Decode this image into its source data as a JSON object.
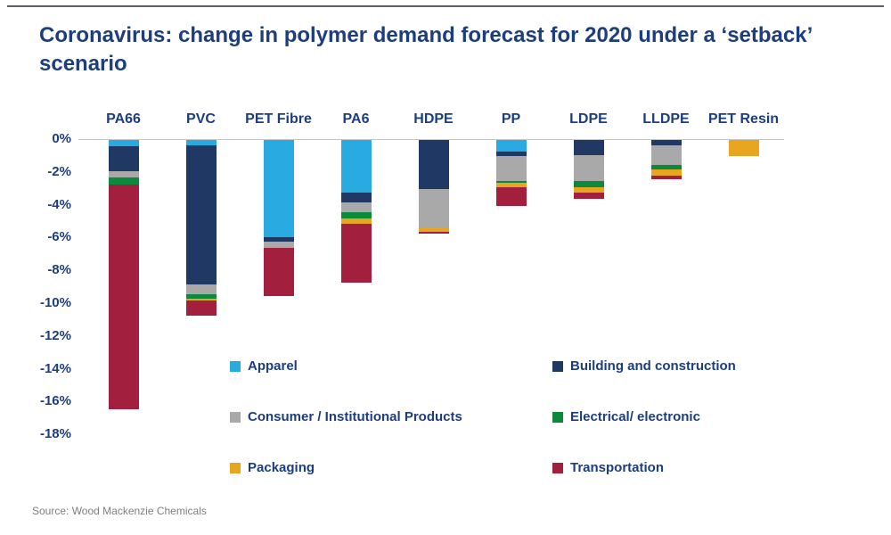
{
  "title": "Coronavirus: change in polymer demand forecast for 2020 under a ‘setback’ scenario",
  "source": "Source: Wood Mackenzie Chemicals",
  "chart_data": {
    "type": "bar",
    "stacked": true,
    "orientation": "vertical",
    "unit": "%",
    "title": "Coronavirus: change in polymer demand forecast for 2020 under a ‘setback’ scenario",
    "xlabel": "",
    "ylabel": "",
    "ylim": [
      -18,
      0
    ],
    "grid": false,
    "legend_position": "inside-bottom",
    "categories": [
      "PA66",
      "PVC",
      "PET Fibre",
      "PA6",
      "HDPE",
      "PP",
      "LDPE",
      "LLDPE",
      "PET Resin"
    ],
    "yticks": [
      {
        "label": "0%",
        "value": 0
      },
      {
        "label": "-2%",
        "value": -2
      },
      {
        "label": "-4%",
        "value": -4
      },
      {
        "label": "-6%",
        "value": -6
      },
      {
        "label": "-8%",
        "value": -8
      },
      {
        "label": "-10%",
        "value": -10
      },
      {
        "label": "-12%",
        "value": -12
      },
      {
        "label": "-14%",
        "value": -14
      },
      {
        "label": "-16%",
        "value": -16
      },
      {
        "label": "-18%",
        "value": -18
      }
    ],
    "series": [
      {
        "name": "Apparel",
        "color": "#29ABE2",
        "values": [
          -0.4,
          -0.3,
          -5.9,
          -3.2,
          0,
          -0.7,
          0,
          0,
          0
        ]
      },
      {
        "name": "Building and construction",
        "color": "#1F3864",
        "values": [
          -1.5,
          -8.5,
          -0.3,
          -0.6,
          -3.0,
          -0.3,
          -0.9,
          -0.3,
          0
        ]
      },
      {
        "name": "Consumer / Institutional Products",
        "color": "#A9A9A9",
        "values": [
          -0.4,
          -0.6,
          -0.4,
          -0.6,
          -2.4,
          -1.5,
          -1.6,
          -1.2,
          0
        ]
      },
      {
        "name": "Electrical/ electronic",
        "color": "#0B8A3C",
        "values": [
          -0.4,
          -0.3,
          0,
          -0.4,
          0,
          -0.1,
          -0.4,
          -0.3,
          0
        ]
      },
      {
        "name": "Packaging",
        "color": "#E8A520",
        "values": [
          0,
          -0.1,
          0,
          -0.3,
          -0.2,
          -0.3,
          -0.3,
          -0.4,
          -1.0
        ]
      },
      {
        "name": "Transportation",
        "color": "#A2203E",
        "values": [
          -13.7,
          -0.9,
          -2.9,
          -3.6,
          -0.1,
          -1.1,
          -0.4,
          -0.2,
          0
        ]
      }
    ],
    "totals": [
      -16.4,
      -10.7,
      -9.5,
      -8.7,
      -5.7,
      -4.0,
      -3.6,
      -2.4,
      -1.0
    ]
  }
}
